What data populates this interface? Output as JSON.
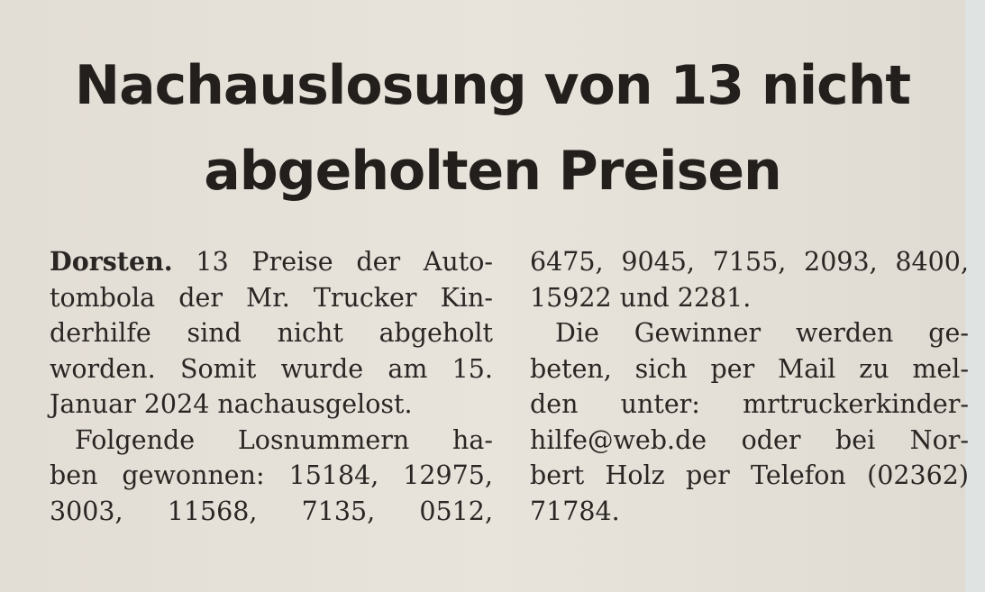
{
  "headline": {
    "line1": "Nachauslosung von 13 nicht",
    "line2": "abgeholten Preisen"
  },
  "left_column": {
    "dateline": "Dorsten.",
    "lines": [
      " 13 Preise der Auto-",
      "tombola der Mr. Trucker Kin-",
      "derhilfe sind nicht abgeholt",
      "worden. Somit wurde am 15.",
      "Januar 2024 nachausgelost.",
      "Folgende Losnummern ha-",
      "ben gewonnen: 15184, 12975,",
      "3003, 11568, 7135, 0512,"
    ]
  },
  "right_column": {
    "lines": [
      "6475, 9045, 7155, 2093, 8400,",
      "15922 und 2281.",
      "Die Gewinner werden ge-",
      "beten, sich per Mail zu mel-",
      "den unter: mrtruckerkinder-",
      "hilfe@web.de oder bei Nor-",
      "bert Holz per Telefon (02362)",
      "71784."
    ]
  }
}
